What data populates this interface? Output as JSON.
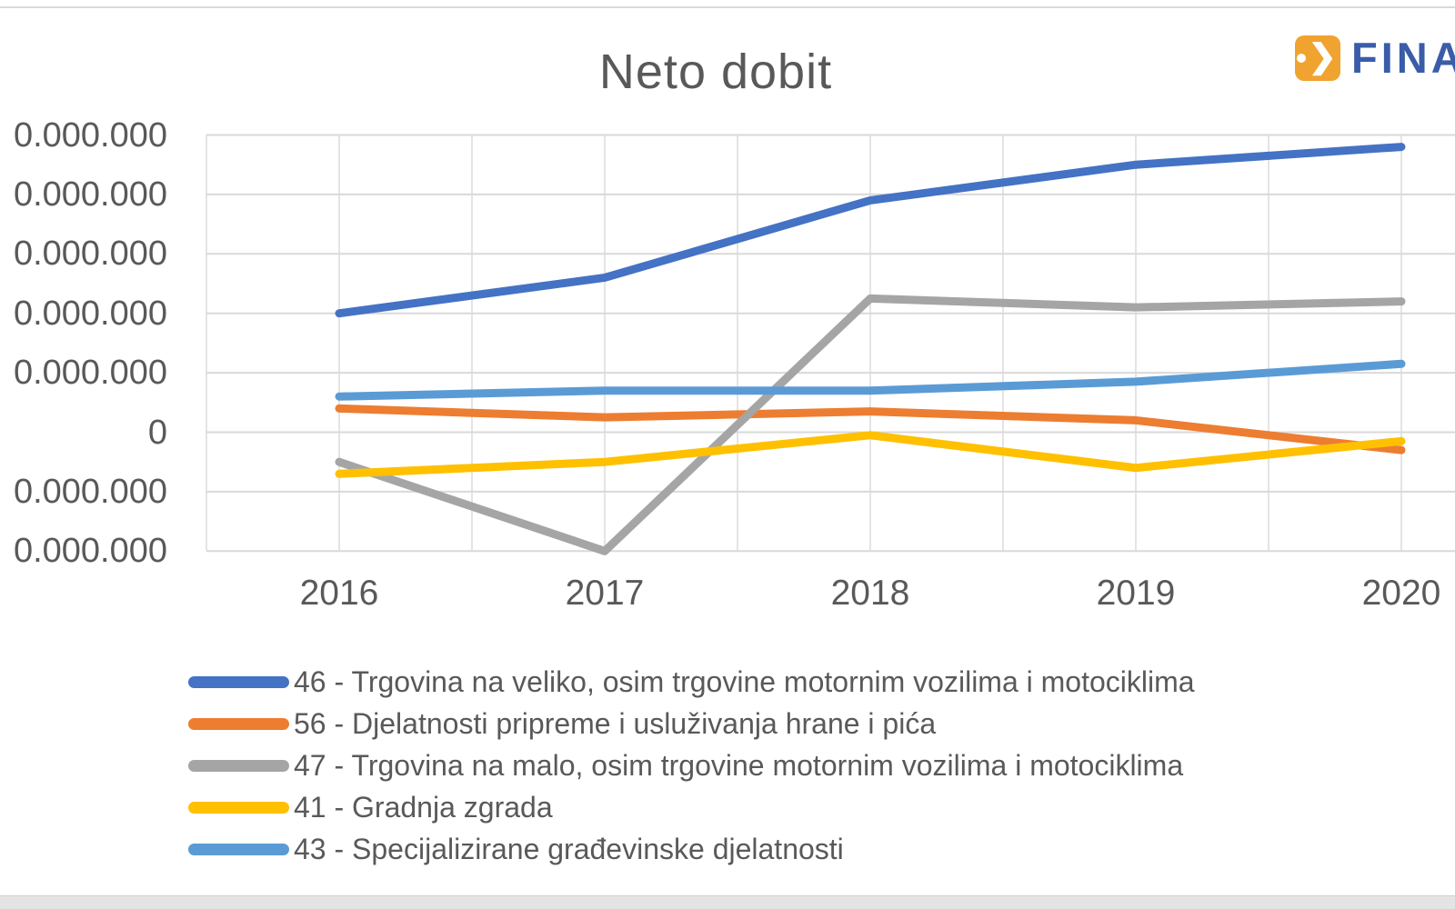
{
  "window": {
    "logo": {
      "text": "FINA",
      "icon": "dot-chevron-arrow-icon",
      "box_color": "#F0A32F",
      "text_color": "#3A5CA9"
    }
  },
  "chart_data": {
    "type": "line",
    "title": "Neto dobit",
    "categories": [
      "2016",
      "2017",
      "2018",
      "2019",
      "2020"
    ],
    "series": [
      {
        "name": "46 - Trgovina na veliko, osim trgovine motornim vozilima i motociklima",
        "color": "#4472C4",
        "values": [
          20000000,
          26000000,
          39000000,
          45000000,
          48000000
        ]
      },
      {
        "name": "56 - Djelatnosti pripreme i usluživanja hrane i pića",
        "color": "#ED7D31",
        "values": [
          4000000,
          2500000,
          3500000,
          2000000,
          -3000000
        ]
      },
      {
        "name": "47 - Trgovina na malo, osim trgovine motornim vozilima i motociklima",
        "color": "#A5A5A5",
        "values": [
          -5000000,
          -20000000,
          22500000,
          21000000,
          22000000
        ]
      },
      {
        "name": "41 - Gradnja zgrada",
        "color": "#FFC000",
        "values": [
          -7000000,
          -5000000,
          -500000,
          -6000000,
          -1500000
        ]
      },
      {
        "name": "43 - Specijalizirane građevinske djelatnosti",
        "color": "#5B9BD5",
        "values": [
          6000000,
          7000000,
          7000000,
          8500000,
          11500000
        ]
      }
    ],
    "ylim": [
      -20000000,
      50000000
    ],
    "y_tick_step": 10000000,
    "y_tick_labels_visible": [
      "0.000.000",
      "0.000.000",
      "0.000.000",
      "0.000.000",
      "0.000.000",
      "0",
      "0.000.000",
      "0.000.000"
    ],
    "xlabel": "",
    "ylabel": "",
    "grid": true,
    "legend_position": "bottom-left",
    "gridline_color": "#D9D9D9",
    "text_color": "#595959"
  }
}
